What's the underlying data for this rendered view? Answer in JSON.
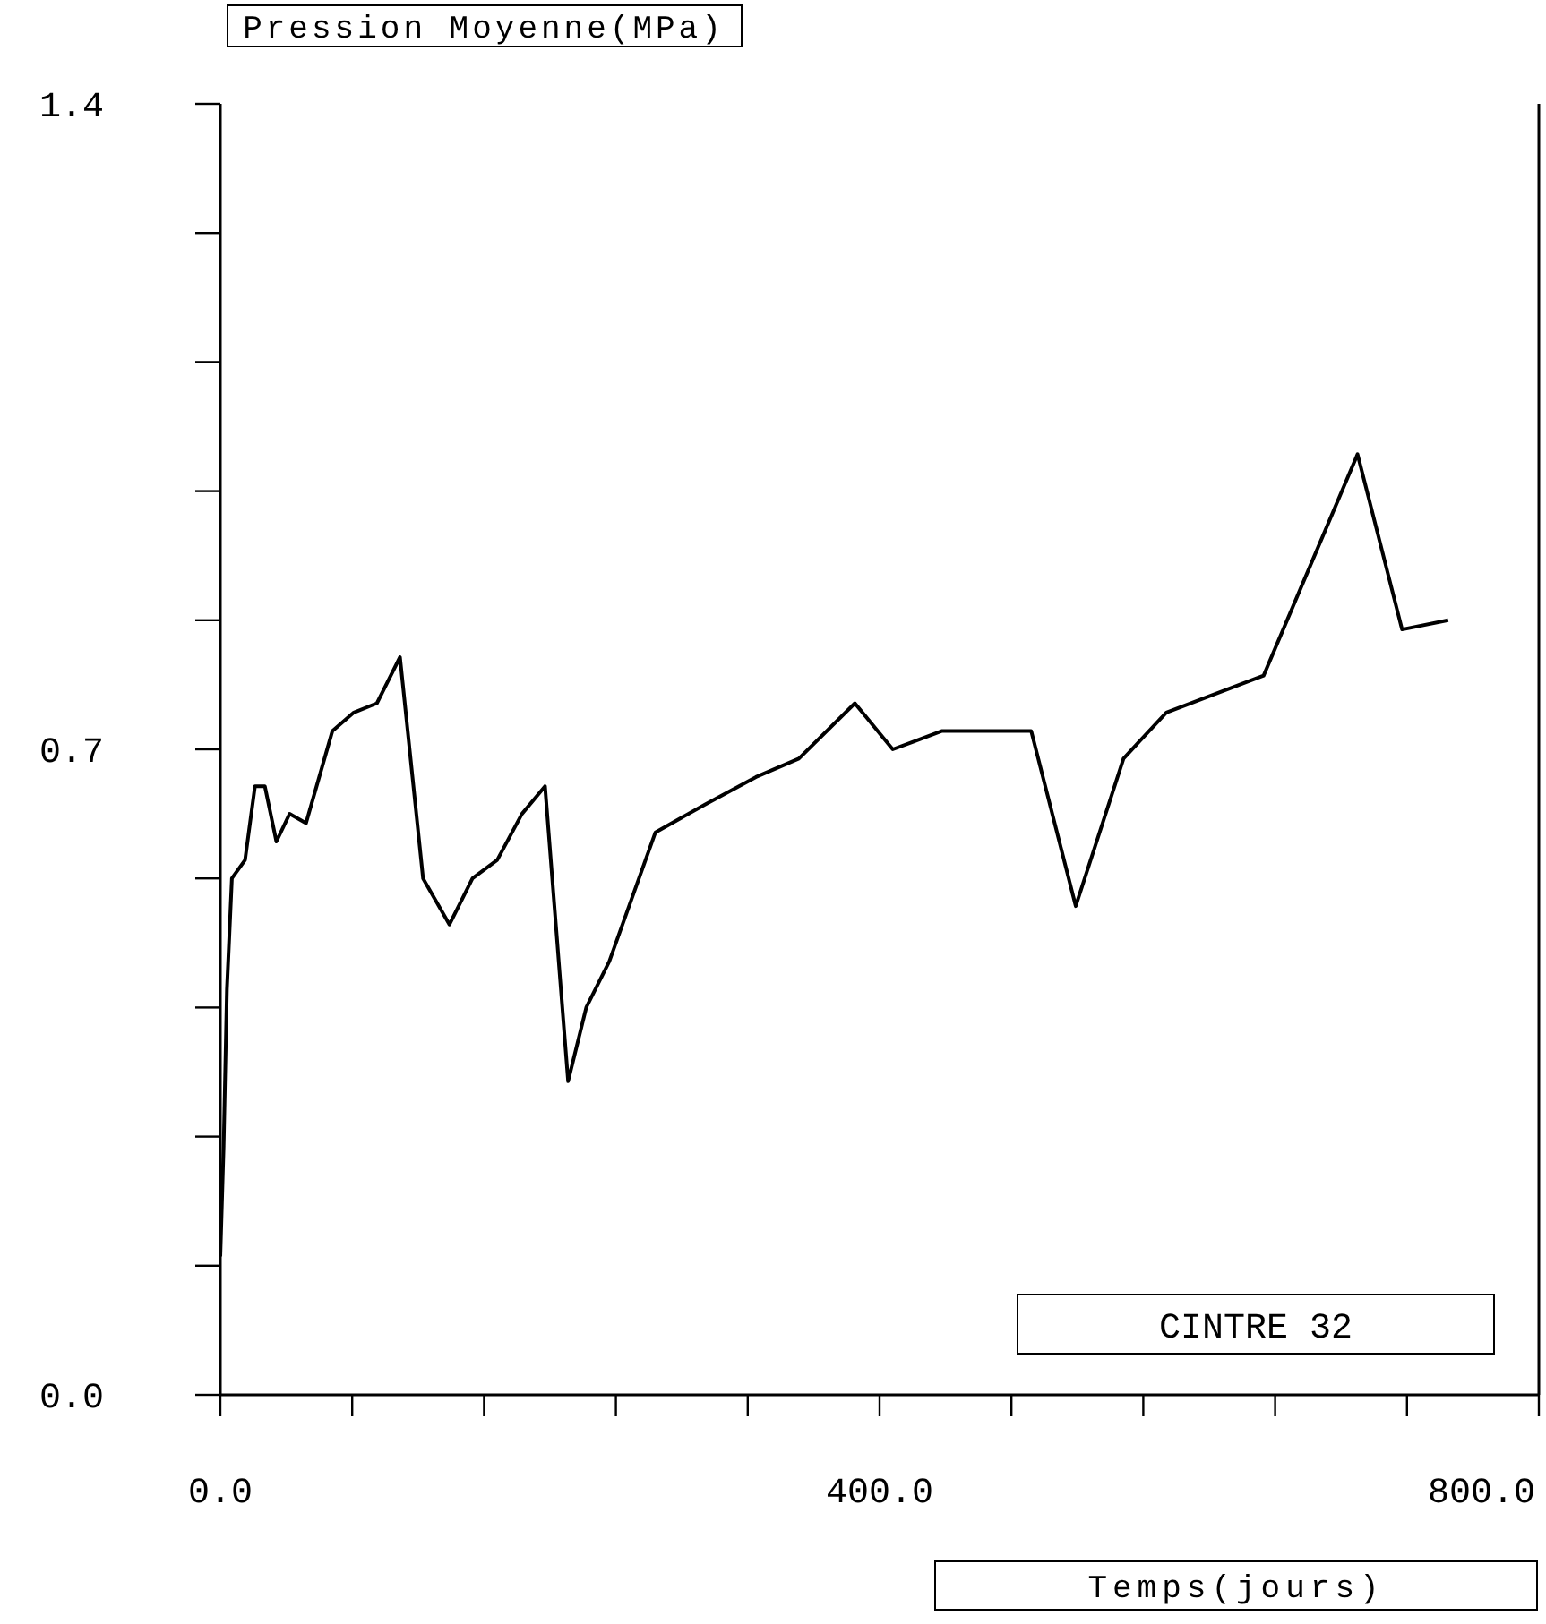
{
  "chart_data": {
    "type": "line",
    "ylabel": "Pression Moyenne(MPa)",
    "xlabel": "Temps(jours)",
    "annotations": [
      "CINTRE 32"
    ],
    "xlim": [
      0,
      800
    ],
    "ylim": [
      0,
      1.4
    ],
    "xticks": [
      {
        "value": 0,
        "label": "0.0"
      },
      {
        "value": 80,
        "label": null
      },
      {
        "value": 160,
        "label": null
      },
      {
        "value": 240,
        "label": null
      },
      {
        "value": 320,
        "label": null
      },
      {
        "value": 400,
        "label": "400.0"
      },
      {
        "value": 480,
        "label": null
      },
      {
        "value": 560,
        "label": null
      },
      {
        "value": 640,
        "label": null
      },
      {
        "value": 720,
        "label": null
      },
      {
        "value": 800,
        "label": "800.0"
      }
    ],
    "yticks": [
      {
        "value": 0,
        "label": "0.0"
      },
      {
        "value": 0.14,
        "label": null
      },
      {
        "value": 0.28,
        "label": null
      },
      {
        "value": 0.42,
        "label": null
      },
      {
        "value": 0.56,
        "label": null
      },
      {
        "value": 0.7,
        "label": "0.7"
      },
      {
        "value": 0.84,
        "label": null
      },
      {
        "value": 0.98,
        "label": null
      },
      {
        "value": 1.12,
        "label": null
      },
      {
        "value": 1.26,
        "label": null
      },
      {
        "value": 1.4,
        "label": "1.4"
      }
    ],
    "grid": false,
    "marker": "none",
    "line_style": "solid",
    "x": [
      0,
      2,
      4,
      7,
      15,
      21,
      27,
      34,
      42,
      52,
      68,
      81,
      95,
      109,
      123,
      139,
      153,
      168,
      183,
      197,
      211,
      222,
      236,
      264,
      294,
      325,
      351,
      385,
      408,
      438,
      492,
      519,
      548,
      574,
      633,
      690,
      717,
      745
    ],
    "series": [
      {
        "color": "#000000",
        "values": [
          0.15,
          0.27,
          0.44,
          0.56,
          0.58,
          0.66,
          0.66,
          0.6,
          0.63,
          0.62,
          0.72,
          0.74,
          0.75,
          0.8,
          0.56,
          0.51,
          0.56,
          0.58,
          0.63,
          0.66,
          0.34,
          0.42,
          0.47,
          0.61,
          0.64,
          0.67,
          0.69,
          0.75,
          0.7,
          0.72,
          0.72,
          0.53,
          0.69,
          0.74,
          0.78,
          1.02,
          0.83,
          0.84
        ]
      }
    ]
  }
}
